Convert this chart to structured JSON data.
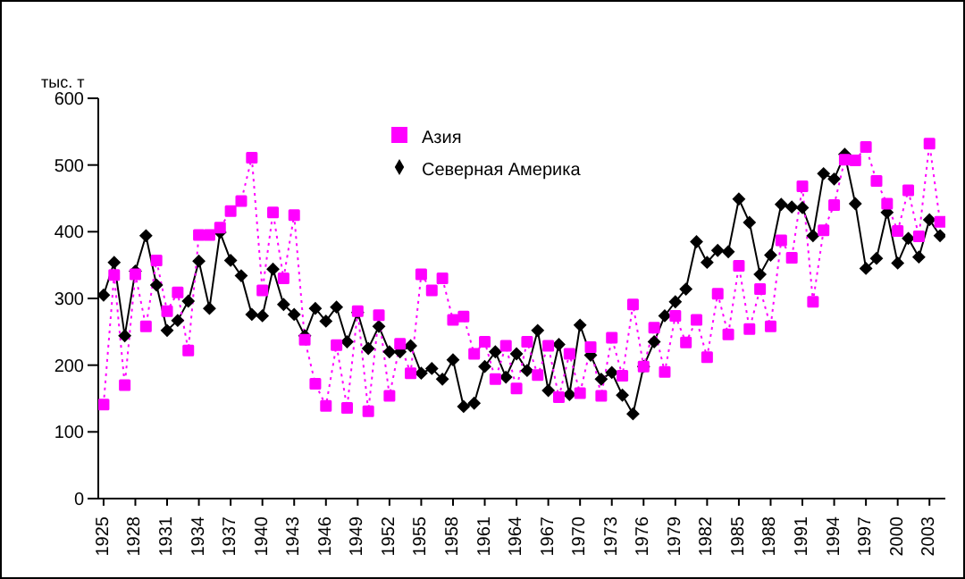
{
  "chart_data": {
    "type": "line",
    "ylabel": "тыс. т",
    "x": [
      1925,
      1926,
      1927,
      1928,
      1929,
      1930,
      1931,
      1932,
      1933,
      1934,
      1935,
      1936,
      1937,
      1938,
      1939,
      1940,
      1941,
      1942,
      1943,
      1944,
      1945,
      1946,
      1947,
      1948,
      1949,
      1950,
      1951,
      1952,
      1953,
      1954,
      1955,
      1956,
      1957,
      1958,
      1959,
      1960,
      1961,
      1962,
      1963,
      1964,
      1965,
      1966,
      1967,
      1968,
      1969,
      1970,
      1971,
      1972,
      1973,
      1974,
      1975,
      1976,
      1977,
      1978,
      1979,
      1980,
      1981,
      1982,
      1983,
      1984,
      1985,
      1986,
      1987,
      1988,
      1989,
      1990,
      1991,
      1992,
      1993,
      1994,
      1995,
      1996,
      1997,
      1998,
      1999,
      2000,
      2001,
      2002,
      2003,
      2004
    ],
    "series": [
      {
        "name": "Северная Америка",
        "color": "#000000",
        "marker": "diamond",
        "line_style": "solid",
        "values": [
          305,
          354,
          244,
          341,
          394,
          320,
          252,
          267,
          296,
          356,
          285,
          399,
          357,
          334,
          276,
          274,
          344,
          291,
          276,
          244,
          285,
          266,
          287,
          235,
          279,
          225,
          258,
          220,
          220,
          229,
          188,
          195,
          179,
          208,
          138,
          143,
          198,
          220,
          182,
          217,
          192,
          252,
          162,
          231,
          156,
          260,
          215,
          179,
          189,
          155,
          127,
          198,
          235,
          274,
          295,
          314,
          385,
          354,
          372,
          370,
          449,
          414,
          336,
          365,
          441,
          437,
          436,
          394,
          487,
          479,
          516,
          442,
          345,
          360,
          429,
          353,
          390,
          362,
          418,
          394
        ]
      },
      {
        "name": "Азия",
        "color": "#ff00ff",
        "marker": "square",
        "line_style": "dotted",
        "values": [
          141,
          335,
          170,
          336,
          258,
          357,
          281,
          309,
          222,
          395,
          395,
          406,
          431,
          446,
          511,
          312,
          429,
          330,
          425,
          238,
          172,
          139,
          230,
          136,
          281,
          131,
          275,
          154,
          232,
          188,
          336,
          312,
          330,
          268,
          273,
          217,
          235,
          179,
          229,
          165,
          235,
          185,
          229,
          152,
          217,
          158,
          227,
          154,
          241,
          184,
          291,
          198,
          256,
          190,
          274,
          234,
          268,
          212,
          307,
          246,
          349,
          254,
          314,
          258,
          387,
          361,
          468,
          295,
          402,
          440,
          508,
          507,
          527,
          476,
          442,
          401,
          462,
          393,
          532,
          415
        ]
      }
    ],
    "xlim": [
      1924.5,
      2004.5
    ],
    "xticks": [
      1925,
      1928,
      1931,
      1934,
      1937,
      1940,
      1943,
      1946,
      1949,
      1952,
      1955,
      1958,
      1961,
      1964,
      1967,
      1970,
      1973,
      1976,
      1979,
      1982,
      1985,
      1988,
      1991,
      1994,
      1997,
      2000,
      2003
    ],
    "ylim": [
      0,
      600
    ],
    "yticks": [
      0,
      100,
      200,
      300,
      400,
      500,
      600
    ],
    "grid": false,
    "legend": "top"
  }
}
